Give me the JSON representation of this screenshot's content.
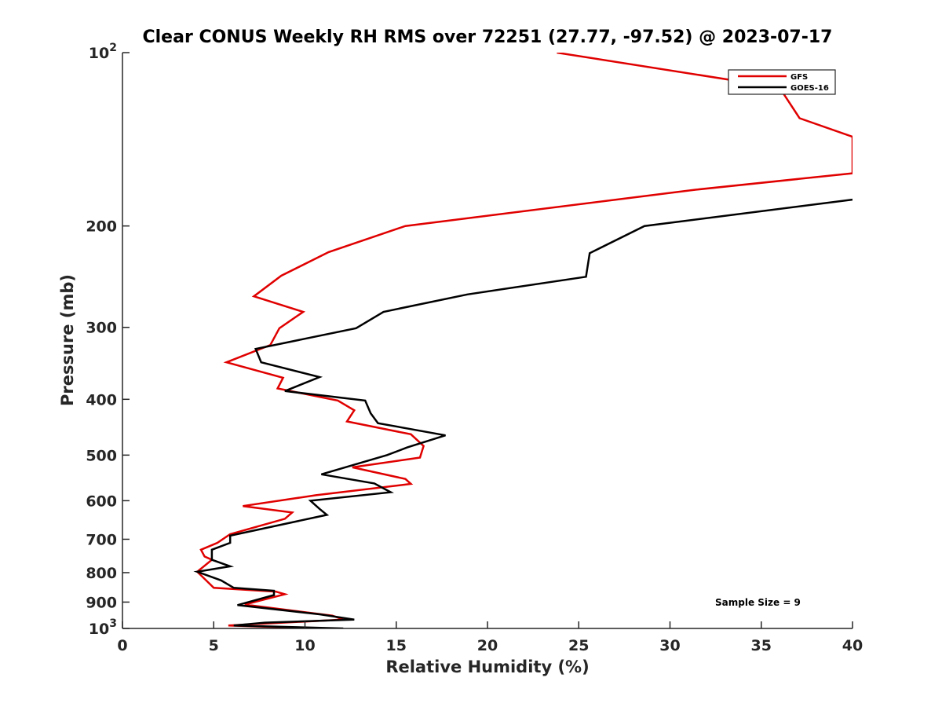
{
  "chart_data": {
    "type": "line",
    "title": "Clear CONUS Weekly RH RMS over 72251 (27.77, -97.52) @ 2023-07-17",
    "xlabel": "Relative Humidity (%)",
    "ylabel": "Pressure (mb)",
    "xlim": [
      0,
      40
    ],
    "ylim": [
      100,
      1000
    ],
    "yscale": "log",
    "y_reversed": true,
    "grid": false,
    "legend_position": "top-right",
    "x_ticks": [
      0,
      5,
      10,
      15,
      20,
      25,
      30,
      35,
      40
    ],
    "y_ticks": [
      100,
      200,
      300,
      400,
      500,
      600,
      700,
      800,
      900,
      1000
    ],
    "y_tick_labels": [
      {
        "base": "10",
        "exp": "2"
      },
      {
        "base": "200",
        "exp": ""
      },
      {
        "base": "300",
        "exp": ""
      },
      {
        "base": "400",
        "exp": ""
      },
      {
        "base": "500",
        "exp": ""
      },
      {
        "base": "600",
        "exp": ""
      },
      {
        "base": "700",
        "exp": ""
      },
      {
        "base": "800",
        "exp": ""
      },
      {
        "base": "900",
        "exp": ""
      },
      {
        "base": "10",
        "exp": "3"
      }
    ],
    "annotation": "Sample Size = 9",
    "series": [
      {
        "name": "GFS",
        "color": "#e00000",
        "points": [
          [
            23.8,
            100
          ],
          [
            36.0,
            115
          ],
          [
            37.1,
            130
          ],
          [
            40.0,
            140
          ],
          [
            40.0,
            162
          ],
          [
            31.4,
            173
          ],
          [
            15.5,
            200
          ],
          [
            11.3,
            222
          ],
          [
            8.7,
            244
          ],
          [
            7.2,
            265
          ],
          [
            9.9,
            282
          ],
          [
            8.6,
            301
          ],
          [
            8.1,
            322
          ],
          [
            5.7,
            345
          ],
          [
            8.8,
            367
          ],
          [
            8.5,
            383
          ],
          [
            11.8,
            402
          ],
          [
            12.7,
            418
          ],
          [
            12.3,
            437
          ],
          [
            15.8,
            460
          ],
          [
            16.5,
            482
          ],
          [
            16.3,
            505
          ],
          [
            12.6,
            525
          ],
          [
            15.5,
            550
          ],
          [
            15.8,
            561
          ],
          [
            10.6,
            587
          ],
          [
            6.6,
            613
          ],
          [
            9.3,
            629
          ],
          [
            8.9,
            645
          ],
          [
            5.9,
            686
          ],
          [
            5.2,
            710
          ],
          [
            4.3,
            730
          ],
          [
            4.5,
            750
          ],
          [
            4.9,
            760
          ],
          [
            4.1,
            797
          ],
          [
            5.0,
            850
          ],
          [
            8.4,
            863
          ],
          [
            8.9,
            872
          ],
          [
            6.7,
            909
          ],
          [
            11.5,
            950
          ],
          [
            12.1,
            965
          ],
          [
            5.8,
            988
          ],
          [
            10.7,
            1000
          ]
        ]
      },
      {
        "name": "GOES-16",
        "color": "#000000",
        "points": [
          [
            40.0,
            180
          ],
          [
            28.6,
            200
          ],
          [
            25.6,
            223
          ],
          [
            25.4,
            245
          ],
          [
            18.9,
            263
          ],
          [
            14.3,
            282
          ],
          [
            12.8,
            301
          ],
          [
            7.3,
            327
          ],
          [
            7.6,
            345
          ],
          [
            10.8,
            366
          ],
          [
            8.9,
            387
          ],
          [
            13.3,
            402
          ],
          [
            13.6,
            423
          ],
          [
            14.0,
            440
          ],
          [
            17.7,
            462
          ],
          [
            15.6,
            485
          ],
          [
            14.5,
            500
          ],
          [
            10.9,
            540
          ],
          [
            13.8,
            560
          ],
          [
            14.7,
            580
          ],
          [
            10.3,
            600
          ],
          [
            10.8,
            620
          ],
          [
            11.2,
            635
          ],
          [
            5.9,
            690
          ],
          [
            5.9,
            710
          ],
          [
            4.9,
            730
          ],
          [
            4.9,
            760
          ],
          [
            5.9,
            780
          ],
          [
            4.1,
            797
          ],
          [
            5.4,
            825
          ],
          [
            6.1,
            850
          ],
          [
            8.3,
            860
          ],
          [
            8.3,
            875
          ],
          [
            6.3,
            911
          ],
          [
            10.8,
            945
          ],
          [
            12.7,
            965
          ],
          [
            7.8,
            977
          ],
          [
            6.1,
            988
          ],
          [
            12.1,
            1000
          ]
        ]
      }
    ]
  }
}
